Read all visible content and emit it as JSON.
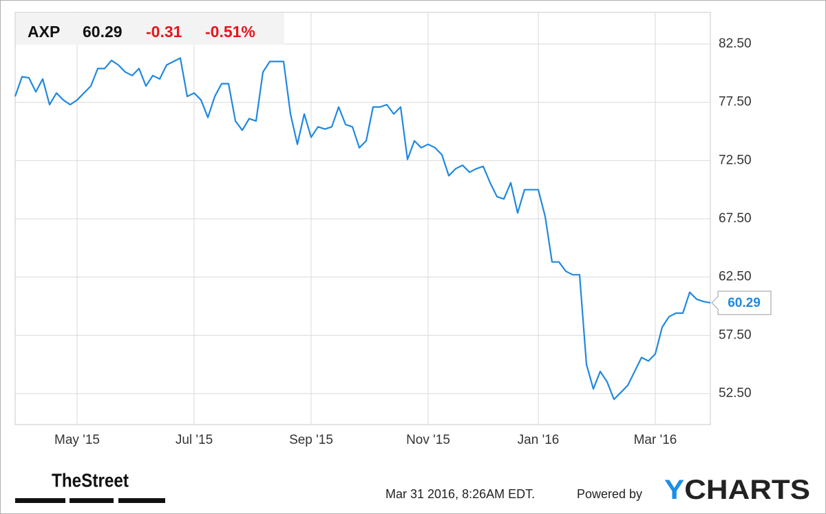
{
  "chart_data": {
    "type": "line",
    "ticker": "AXP",
    "price": 60.29,
    "change": -0.31,
    "change_percent": "-0.51%",
    "timestamp": "Mar 31 2016, 8:26AM EDT.",
    "powered_by": "Powered by",
    "brand": "YCHARTS",
    "source_logo": "TheStreet",
    "color": "#1f88e0",
    "categories": [
      null,
      null,
      null,
      null,
      null,
      null,
      null,
      null,
      null,
      "May '15",
      null,
      null,
      null,
      null,
      null,
      null,
      null,
      null,
      null,
      null,
      null,
      null,
      null,
      null,
      null,
      null,
      "Jul '15",
      null,
      null,
      null,
      null,
      null,
      null,
      null,
      null,
      null,
      null,
      null,
      null,
      null,
      null,
      null,
      null,
      "Sep '15",
      null,
      null,
      null,
      null,
      null,
      null,
      null,
      null,
      null,
      null,
      null,
      null,
      null,
      null,
      null,
      null,
      "Nov '15",
      null,
      null,
      null,
      null,
      null,
      null,
      null,
      null,
      null,
      null,
      null,
      null,
      null,
      null,
      null,
      "Jan '16",
      null,
      null,
      null,
      null,
      null,
      null,
      null,
      null,
      null,
      null,
      null,
      null,
      null,
      null,
      null,
      null,
      "Mar '16",
      null,
      null,
      null,
      null,
      null,
      null,
      null,
      null
    ],
    "values": [
      78.0,
      79.7,
      79.6,
      78.4,
      79.5,
      77.3,
      78.3,
      77.7,
      77.3,
      77.7,
      78.3,
      78.9,
      80.4,
      80.4,
      81.1,
      80.7,
      80.1,
      79.8,
      80.4,
      78.9,
      79.8,
      79.5,
      80.7,
      81.0,
      81.3,
      78.0,
      78.3,
      77.7,
      76.2,
      78.0,
      79.1,
      79.1,
      75.9,
      75.1,
      76.1,
      75.9,
      80.1,
      81.0,
      81.0,
      81.0,
      76.5,
      73.9,
      76.5,
      74.5,
      75.4,
      75.2,
      75.4,
      77.1,
      75.6,
      75.4,
      73.6,
      74.2,
      77.1,
      77.1,
      77.3,
      76.5,
      77.1,
      72.6,
      74.2,
      73.6,
      73.9,
      73.6,
      73.0,
      71.2,
      71.8,
      72.1,
      71.5,
      71.8,
      72.0,
      70.6,
      69.4,
      69.2,
      70.6,
      68.0,
      70.0,
      70.0,
      70.0,
      67.7,
      63.8,
      63.8,
      63.0,
      62.7,
      62.7,
      55.0,
      52.9,
      54.4,
      53.5,
      52.0,
      52.6,
      53.2,
      54.4,
      55.6,
      55.3,
      55.9,
      58.2,
      59.1,
      59.4,
      59.4,
      61.2,
      60.6,
      60.4,
      60.29
    ],
    "ylim": [
      49.84,
      85.22
    ],
    "yticks": [
      {
        "value": 52.5,
        "label": "52.50"
      },
      {
        "value": 57.5,
        "label": "57.50"
      },
      {
        "value": 62.5,
        "label": "62.50"
      },
      {
        "value": 67.5,
        "label": "67.50"
      },
      {
        "value": 72.5,
        "label": "72.50"
      },
      {
        "value": 77.5,
        "label": "77.50"
      },
      {
        "value": 82.5,
        "label": "82.50"
      }
    ],
    "grid": true
  }
}
